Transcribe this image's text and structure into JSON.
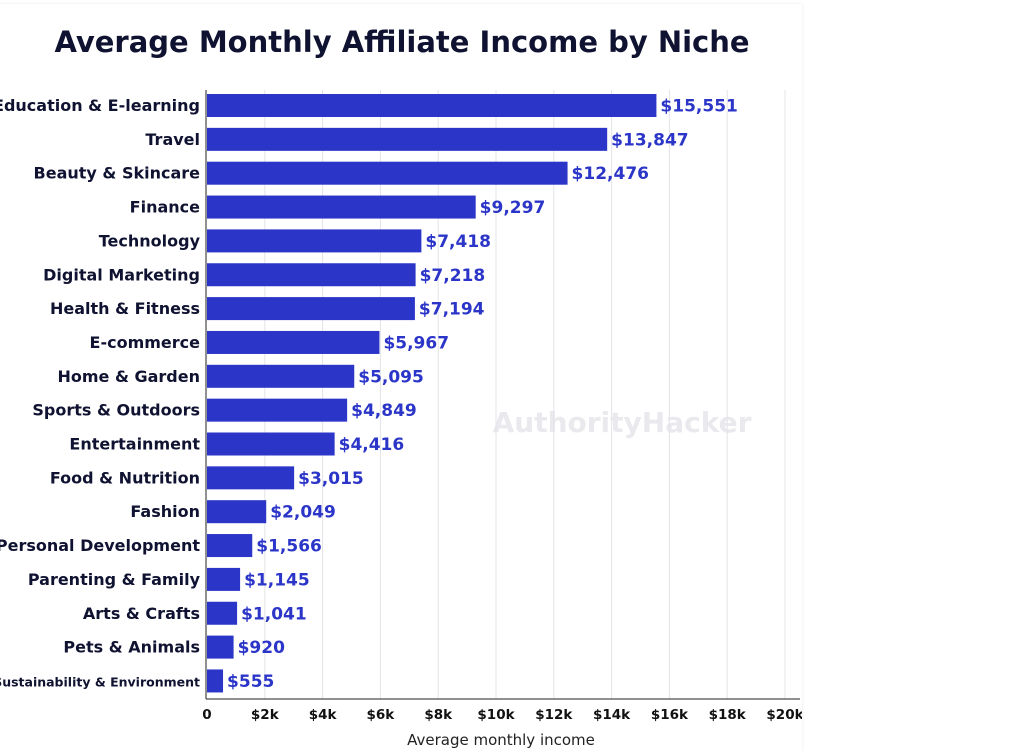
{
  "chart_data": {
    "type": "bar",
    "orientation": "horizontal",
    "title": "Average Monthly Affiliate Income by Niche",
    "xlabel": "Average monthly income",
    "ylabel": "",
    "xlim": [
      0,
      20000
    ],
    "grid": true,
    "watermark": "AuthorityHacker",
    "bar_color": "#2b35c8",
    "label_color": "#2b35c8",
    "text_color": "#0f1230",
    "xticks": [
      {
        "value": 0,
        "label": "0"
      },
      {
        "value": 2000,
        "label": "$2k"
      },
      {
        "value": 4000,
        "label": "$4k"
      },
      {
        "value": 6000,
        "label": "$6k"
      },
      {
        "value": 8000,
        "label": "$8k"
      },
      {
        "value": 10000,
        "label": "$10k"
      },
      {
        "value": 12000,
        "label": "$12k"
      },
      {
        "value": 14000,
        "label": "$14k"
      },
      {
        "value": 16000,
        "label": "$16k"
      },
      {
        "value": 18000,
        "label": "$18k"
      },
      {
        "value": 20000,
        "label": "$20k"
      }
    ],
    "categories": [
      "Education & E-learning",
      "Travel",
      "Beauty & Skincare",
      "Finance",
      "Technology",
      "Digital Marketing",
      "Health & Fitness",
      "E-commerce",
      "Home & Garden",
      "Sports & Outdoors",
      "Entertainment",
      "Food & Nutrition",
      "Fashion",
      "Personal Development",
      "Parenting & Family",
      "Arts & Crafts",
      "Pets & Animals",
      "Sustainability & Environment"
    ],
    "values": [
      15551,
      13847,
      12476,
      9297,
      7418,
      7218,
      7194,
      5967,
      5095,
      4849,
      4416,
      3015,
      2049,
      1566,
      1145,
      1041,
      920,
      555
    ],
    "value_labels": [
      "$15,551",
      "$13,847",
      "$12,476",
      "$9,297",
      "$7,418",
      "$7,218",
      "$7,194",
      "$5,967",
      "$5,095",
      "$4,849",
      "$4,416",
      "$3,015",
      "$2,049",
      "$1,566",
      "$1,145",
      "$1,041",
      "$920",
      "$555"
    ]
  }
}
